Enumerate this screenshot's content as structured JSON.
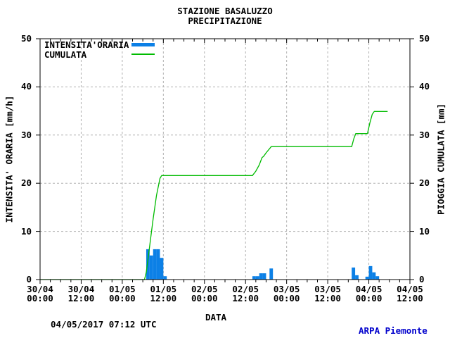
{
  "page": {
    "footer_timestamp": "04/05/2017 07:12 UTC",
    "footer_brand": "ARPA Piemonte",
    "brand_color": "#0000cc",
    "background_color": "#ffffff",
    "grid_color": "#b0b0b0",
    "axis_color": "#000000"
  },
  "chart_data": {
    "type": "bar",
    "title": "STAZIONE BASALUZZO",
    "subtitle": "PRECIPITAZIONE",
    "xlabel": "DATA",
    "ylabel_left": "INTENSITA' ORARIA [mm/h]",
    "ylabel_right": "PIOGGIA CUMULATA [mm]",
    "ylim": [
      0,
      50
    ],
    "x_hours_range": [
      0,
      108
    ],
    "grid": true,
    "y_ticks": [
      0,
      10,
      20,
      30,
      40,
      50
    ],
    "x_ticks": [
      {
        "hour": 0,
        "date": "30/04",
        "time": "00:00"
      },
      {
        "hour": 12,
        "date": "30/04",
        "time": "12:00"
      },
      {
        "hour": 24,
        "date": "01/05",
        "time": "00:00"
      },
      {
        "hour": 36,
        "date": "01/05",
        "time": "12:00"
      },
      {
        "hour": 48,
        "date": "02/05",
        "time": "00:00"
      },
      {
        "hour": 60,
        "date": "02/05",
        "time": "12:00"
      },
      {
        "hour": 72,
        "date": "03/05",
        "time": "00:00"
      },
      {
        "hour": 84,
        "date": "03/05",
        "time": "12:00"
      },
      {
        "hour": 96,
        "date": "04/05",
        "time": "00:00"
      },
      {
        "hour": 108,
        "date": "04/05",
        "time": "12:00"
      }
    ],
    "legend": [
      {
        "label": "INTENSITA'ORARIA",
        "type": "bar",
        "color": "#0c80e6"
      },
      {
        "label": "CUMULATA",
        "type": "line",
        "color": "#00bb00"
      }
    ],
    "series": [
      {
        "name": "INTENSITA'ORARIA",
        "type": "bar",
        "unit": "mm/h",
        "color": "#0c80e6",
        "points": [
          {
            "hour": 31,
            "value": 6.3
          },
          {
            "hour": 32,
            "value": 5.0
          },
          {
            "hour": 33,
            "value": 6.3
          },
          {
            "hour": 34,
            "value": 6.3
          },
          {
            "hour": 35,
            "value": 4.5
          },
          {
            "hour": 36,
            "value": 0.7
          },
          {
            "hour": 62,
            "value": 0.7
          },
          {
            "hour": 63,
            "value": 0.7
          },
          {
            "hour": 64,
            "value": 1.3
          },
          {
            "hour": 65,
            "value": 1.3
          },
          {
            "hour": 67,
            "value": 2.3
          },
          {
            "hour": 91,
            "value": 2.5
          },
          {
            "hour": 92,
            "value": 0.9
          },
          {
            "hour": 95,
            "value": 0.6
          },
          {
            "hour": 96,
            "value": 2.8
          },
          {
            "hour": 97,
            "value": 1.5
          },
          {
            "hour": 98,
            "value": 0.7
          }
        ]
      },
      {
        "name": "CUMULATA",
        "type": "line",
        "unit": "mm",
        "color": "#00bb00",
        "points": [
          {
            "hour": 0,
            "value": 0
          },
          {
            "hour": 30.5,
            "value": 0
          },
          {
            "hour": 31,
            "value": 1.5
          },
          {
            "hour": 32,
            "value": 7
          },
          {
            "hour": 33,
            "value": 12.5
          },
          {
            "hour": 34,
            "value": 17.5
          },
          {
            "hour": 35,
            "value": 21.0
          },
          {
            "hour": 35.5,
            "value": 21.6
          },
          {
            "hour": 62,
            "value": 21.6
          },
          {
            "hour": 63,
            "value": 22.5
          },
          {
            "hour": 64,
            "value": 23.8
          },
          {
            "hour": 64.8,
            "value": 25.3
          },
          {
            "hour": 65.3,
            "value": 25.6
          },
          {
            "hour": 66,
            "value": 26.3
          },
          {
            "hour": 67.5,
            "value": 27.6
          },
          {
            "hour": 91,
            "value": 27.6
          },
          {
            "hour": 91.6,
            "value": 29.2
          },
          {
            "hour": 92.2,
            "value": 30.3
          },
          {
            "hour": 95.6,
            "value": 30.3
          },
          {
            "hour": 96.3,
            "value": 32.5
          },
          {
            "hour": 97,
            "value": 34.3
          },
          {
            "hour": 97.6,
            "value": 34.9
          },
          {
            "hour": 101.5,
            "value": 34.9
          }
        ]
      }
    ]
  }
}
